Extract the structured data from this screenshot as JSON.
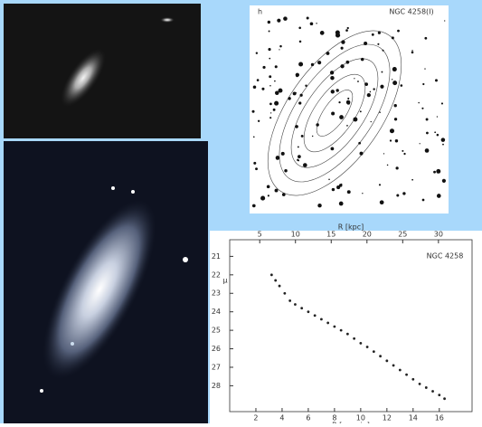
{
  "contour_panel": {
    "label": "h",
    "title": "NGC 4258(I)"
  },
  "chart_data": {
    "type": "scatter",
    "title": "NGC 4258",
    "xlabel": "R [arcmin]",
    "x2label": "R [kpc]",
    "ylabel": "μ",
    "x": [
      3.2,
      3.5,
      3.8,
      4.2,
      4.6,
      5.0,
      5.5,
      6.0,
      6.5,
      7.0,
      7.5,
      8.0,
      8.5,
      9.0,
      9.5,
      10.0,
      10.5,
      11.0,
      11.5,
      12.0,
      12.5,
      13.0,
      13.5,
      14.0,
      14.5,
      15.0,
      15.5,
      16.0,
      16.4
    ],
    "values": [
      22.0,
      22.3,
      22.6,
      23.0,
      23.4,
      23.6,
      23.8,
      24.0,
      24.2,
      24.4,
      24.6,
      24.8,
      25.0,
      25.2,
      25.45,
      25.7,
      25.9,
      26.15,
      26.4,
      26.65,
      26.9,
      27.15,
      27.4,
      27.65,
      27.9,
      28.1,
      28.3,
      28.5,
      28.7
    ],
    "color": "#222222",
    "xlim": [
      0,
      18.5
    ],
    "xticks": [
      2,
      4,
      6,
      8,
      10,
      12,
      14,
      16
    ],
    "x2lim": [
      0.8,
      34.7
    ],
    "x2ticks": [
      5,
      10,
      15,
      20,
      25,
      30
    ],
    "ylim": [
      20.1,
      29.4
    ],
    "yticks": [
      21,
      22,
      23,
      24,
      25,
      26,
      27,
      28
    ],
    "y_inverted": true
  }
}
